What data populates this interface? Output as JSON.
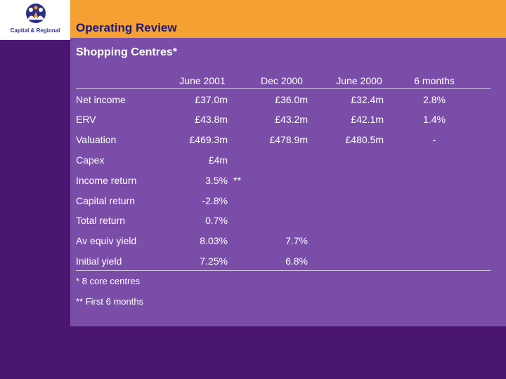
{
  "logo": {
    "text": "Capital & Regional",
    "icon": "people-circle-logo-icon"
  },
  "header": {
    "title": "Operating Review"
  },
  "section": {
    "title": "Shopping Centres*"
  },
  "table": {
    "columns": [
      "June 2001",
      "Dec 2000",
      "June 2000",
      "6 months"
    ],
    "rows": [
      {
        "label": "Net income",
        "values": [
          "£37.0m",
          "£36.0m",
          "£32.4m",
          "2.8%"
        ]
      },
      {
        "label": "ERV",
        "values": [
          "£43.8m",
          "£43.2m",
          "£42.1m",
          "1.4%"
        ]
      },
      {
        "label": "Valuation",
        "values": [
          "£469.3m",
          "£478.9m",
          "£480.5m",
          "-"
        ]
      },
      {
        "label": "Capex",
        "values": [
          "£4m",
          "",
          "",
          ""
        ]
      },
      {
        "label": "Income return",
        "values": [
          "3.5%",
          "",
          "",
          ""
        ],
        "suffix": "**"
      },
      {
        "label": "Capital return",
        "values": [
          "-2.8%",
          "",
          "",
          ""
        ]
      },
      {
        "label": "Total return",
        "values": [
          "0.7%",
          "",
          "",
          ""
        ]
      },
      {
        "label": "Av equiv yield",
        "values": [
          "8.03%",
          "7.7%",
          "",
          ""
        ]
      },
      {
        "label": "Initial yield",
        "values": [
          "7.25%",
          "6.8%",
          "",
          ""
        ]
      }
    ]
  },
  "notes": [
    "* 8 core centres",
    "** First 6 months"
  ]
}
